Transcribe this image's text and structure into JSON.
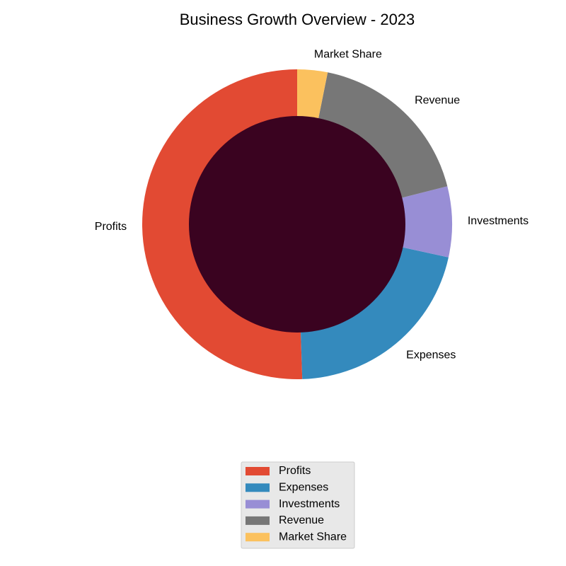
{
  "chart_data": {
    "type": "pie",
    "title": "Business Growth Overview - 2023",
    "donut": true,
    "center_color": "#3a0320",
    "legend_position": "bottom",
    "slices": [
      {
        "label": "Profits",
        "value": 48,
        "color": "#e24a33"
      },
      {
        "label": "Expenses",
        "value": 20,
        "color": "#348abd"
      },
      {
        "label": "Investments",
        "value": 7,
        "color": "#988ed5"
      },
      {
        "label": "Revenue",
        "value": 17,
        "color": "#777777"
      },
      {
        "label": "Market Share",
        "value": 3,
        "color": "#fbc15e"
      }
    ]
  }
}
